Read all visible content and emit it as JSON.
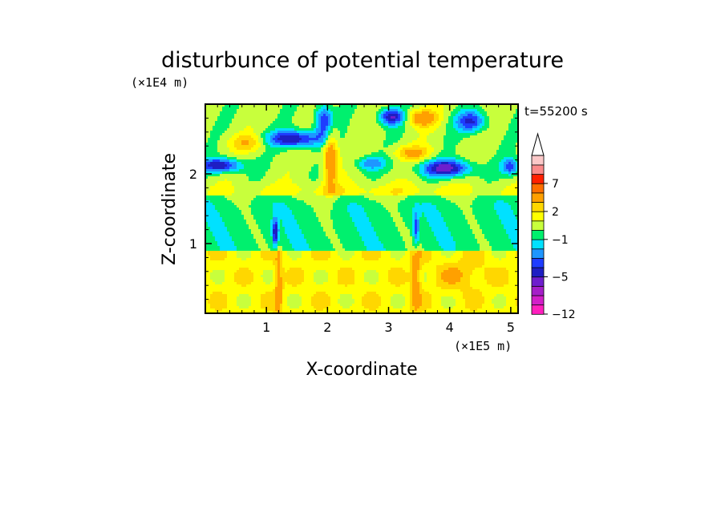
{
  "chart_data": {
    "type": "heatmap",
    "title": "disturbunce of potential temperature",
    "time_label": "t=55200 s",
    "xlabel": "X-coordinate",
    "ylabel": "Z-coordinate",
    "x_unit": "(×1E5 m)",
    "y_unit": "(×1E4 m)",
    "xlim": [
      0,
      5.12
    ],
    "ylim": [
      0,
      3.0
    ],
    "x_ticks": [
      1,
      2,
      3,
      4,
      5
    ],
    "y_ticks": [
      1,
      2
    ],
    "x_tick_labels": [
      "1",
      "2",
      "3",
      "4",
      "5"
    ],
    "y_tick_labels": [
      "1",
      "2"
    ],
    "colorbar": {
      "levels": [
        -12,
        -10,
        -8,
        -6,
        -5,
        -4,
        -3,
        -2,
        -1,
        0,
        1,
        2,
        3,
        5,
        7,
        9,
        11
      ],
      "labeled_levels": [
        -12,
        -5,
        -1,
        2,
        7
      ],
      "tick_labels": [
        "−12",
        "−5",
        "−1",
        "2",
        "7"
      ],
      "colors": [
        "#ff1fbe",
        "#d21ec8",
        "#a51ec8",
        "#6e1ecd",
        "#1e1ec3",
        "#1e3cff",
        "#1e96ff",
        "#00e1ff",
        "#00f06e",
        "#c8ff3c",
        "#ffff00",
        "#ffd700",
        "#ffa000",
        "#ff6e00",
        "#ff2000",
        "#fb8a8a",
        "#fbc8c8"
      ],
      "extend": "max"
    },
    "field_description": [
      {
        "x": 1.15,
        "z": 0.35,
        "value": 2
      },
      {
        "x": 1.15,
        "z": 1.1,
        "value": -4
      },
      {
        "x": 1.9,
        "z": 2.6,
        "value": -5
      },
      {
        "x": 2.05,
        "z": 2.3,
        "value": 5
      },
      {
        "x": 0.25,
        "z": 2.1,
        "value": -5
      },
      {
        "x": 3.05,
        "z": 2.8,
        "value": -5
      },
      {
        "x": 3.45,
        "z": 2.75,
        "value": 3
      },
      {
        "x": 3.95,
        "z": 2.05,
        "value": -5
      },
      {
        "x": 4.3,
        "z": 2.75,
        "value": -4
      },
      {
        "x": 3.45,
        "z": 0.6,
        "value": 3
      },
      {
        "x": 2.5,
        "z": 1.3,
        "value": -0.5
      },
      {
        "x": 4.6,
        "z": 1.3,
        "value": -0.5
      }
    ]
  }
}
